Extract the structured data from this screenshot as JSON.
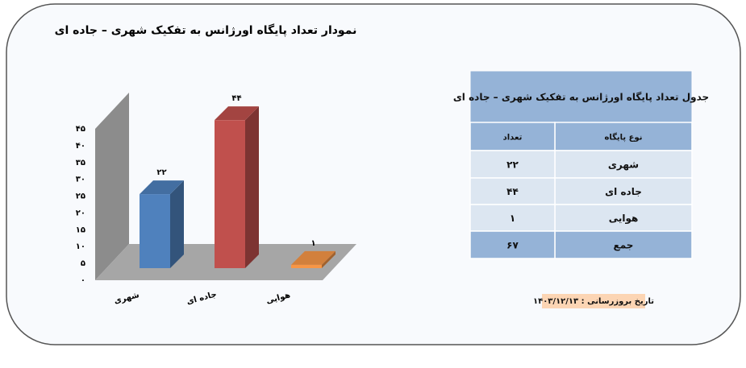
{
  "chart_data": {
    "type": "bar",
    "title": "نمودار تعداد پایگاه اورژانس به تفکیک شهری – جاده ای",
    "categories": [
      "شهری",
      "جاده ای",
      "هوایی"
    ],
    "values": [
      22,
      44,
      1
    ],
    "value_labels": [
      "۲۲",
      "۴۴",
      "۱"
    ],
    "colors": [
      "#4f81bd",
      "#c0504d",
      "#f79646"
    ],
    "ylim": [
      0,
      45
    ],
    "yticks": [
      {
        "value": 0,
        "label": "۰"
      },
      {
        "value": 5,
        "label": "۵"
      },
      {
        "value": 10,
        "label": "۱۰"
      },
      {
        "value": 15,
        "label": "۱۵"
      },
      {
        "value": 20,
        "label": "۲۰"
      },
      {
        "value": 25,
        "label": "۲۵"
      },
      {
        "value": 30,
        "label": "۳۰"
      },
      {
        "value": 35,
        "label": "۳۵"
      },
      {
        "value": 40,
        "label": "۴۰"
      },
      {
        "value": 45,
        "label": "۴۵"
      }
    ]
  },
  "table": {
    "title": "جدول تعداد پایگاه اورژانس به تفکیک شهری – جاده ای",
    "header": [
      "نوع پایگاه",
      "تعداد"
    ],
    "rows": [
      [
        "شهری",
        "۲۲"
      ],
      [
        "جاده ای",
        "۴۴"
      ],
      [
        "هوایی",
        "۱"
      ],
      [
        "جمع",
        "۶۷"
      ]
    ]
  },
  "footnote": "تاریخ بروزرسانی : ۱۴۰۳/۱۲/۱۳"
}
